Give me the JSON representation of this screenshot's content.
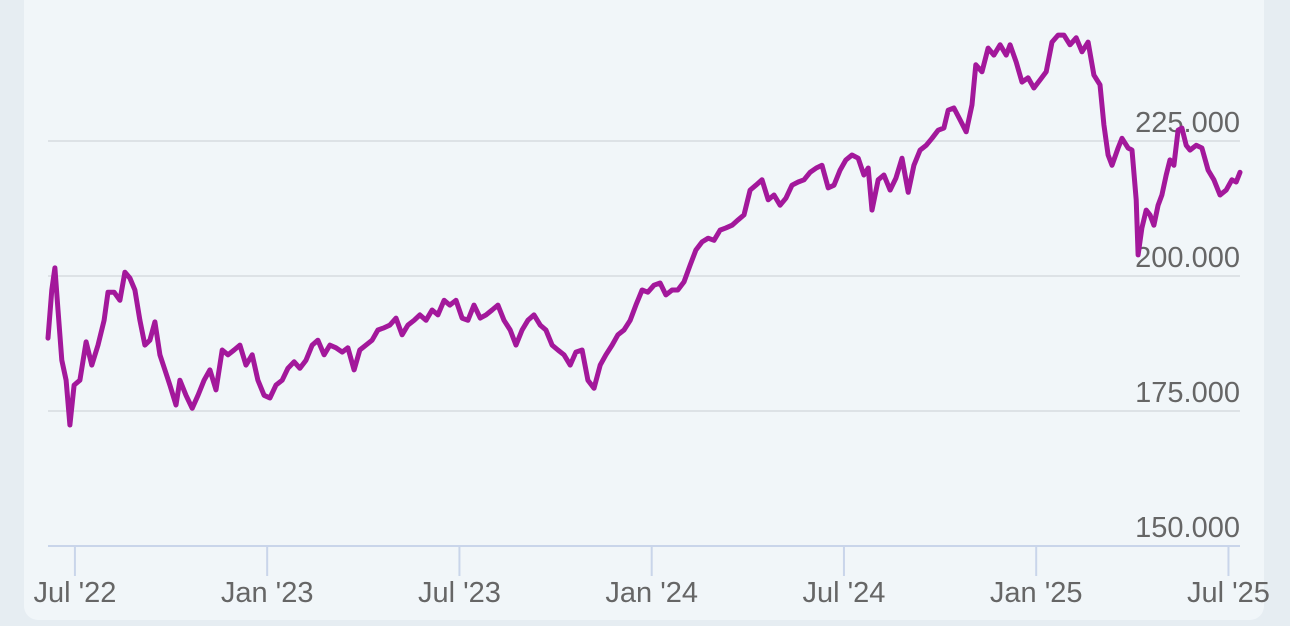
{
  "chart_data": {
    "type": "line",
    "color": "#a3189b",
    "xlim": [
      2022.43,
      2025.53
    ],
    "xticks": [
      {
        "value": 2022.5,
        "label": "Jul '22"
      },
      {
        "value": 2023.0,
        "label": "Jan '23"
      },
      {
        "value": 2023.5,
        "label": "Jul '23"
      },
      {
        "value": 2024.0,
        "label": "Jan '24"
      },
      {
        "value": 2024.5,
        "label": "Jul '24"
      },
      {
        "value": 2025.0,
        "label": "Jan '25"
      },
      {
        "value": 2025.5,
        "label": "Jul '25"
      }
    ],
    "ylim": [
      150000,
      251100
    ],
    "yticks": [
      {
        "value": 150000,
        "label": "150.000"
      },
      {
        "value": 175000,
        "label": "175.000"
      },
      {
        "value": 200000,
        "label": "200.000"
      },
      {
        "value": 225000,
        "label": "225.000"
      }
    ],
    "grid": true,
    "x": [
      2022.43,
      2022.44,
      2022.448,
      2022.456,
      2022.466,
      2022.477,
      2022.487,
      2022.498,
      2022.513,
      2022.529,
      2022.544,
      2022.56,
      2022.576,
      2022.586,
      2022.602,
      2022.617,
      2022.63,
      2022.643,
      2022.656,
      2022.669,
      2022.682,
      2022.695,
      2022.708,
      2022.721,
      2022.734,
      2022.747,
      2022.763,
      2022.773,
      2022.789,
      2022.805,
      2022.82,
      2022.836,
      2022.851,
      2022.867,
      2022.883,
      2022.898,
      2022.914,
      2022.929,
      2022.945,
      2022.961,
      2022.976,
      2022.992,
      2023.007,
      2023.023,
      2023.039,
      2023.054,
      2023.07,
      2023.085,
      2023.101,
      2023.117,
      2023.132,
      2023.148,
      2023.163,
      2023.179,
      2023.195,
      2023.21,
      2023.226,
      2023.241,
      2023.257,
      2023.273,
      2023.288,
      2023.304,
      2023.319,
      2023.335,
      2023.351,
      2023.366,
      2023.382,
      2023.397,
      2023.413,
      2023.429,
      2023.444,
      2023.46,
      2023.475,
      2023.491,
      2023.507,
      2023.522,
      2023.538,
      2023.554,
      2023.569,
      2023.585,
      2023.6,
      2023.616,
      2023.632,
      2023.647,
      2023.663,
      2023.678,
      2023.694,
      2023.71,
      2023.725,
      2023.741,
      2023.756,
      2023.772,
      2023.788,
      2023.803,
      2023.819,
      2023.834,
      2023.85,
      2023.866,
      2023.881,
      2023.897,
      2023.912,
      2023.928,
      2023.944,
      2023.959,
      2023.975,
      2023.99,
      2024.006,
      2024.022,
      2024.037,
      2024.053,
      2024.068,
      2024.084,
      2024.1,
      2024.115,
      2024.131,
      2024.147,
      2024.162,
      2024.178,
      2024.193,
      2024.209,
      2024.225,
      2024.24,
      2024.256,
      2024.271,
      2024.287,
      2024.303,
      2024.318,
      2024.334,
      2024.349,
      2024.365,
      2024.381,
      2024.396,
      2024.412,
      2024.428,
      2024.443,
      2024.459,
      2024.474,
      2024.49,
      2024.505,
      2024.521,
      2024.537,
      2024.552,
      2024.563,
      2024.573,
      2024.589,
      2024.604,
      2024.62,
      2024.635,
      2024.651,
      2024.667,
      2024.682,
      2024.698,
      2024.714,
      2024.729,
      2024.745,
      2024.76,
      2024.771,
      2024.786,
      2024.802,
      2024.818,
      2024.833,
      2024.843,
      2024.859,
      2024.875,
      2024.89,
      2024.906,
      2024.922,
      2024.932,
      2024.948,
      2024.963,
      2024.979,
      2024.994,
      2025.01,
      2025.026,
      2025.041,
      2025.057,
      2025.072,
      2025.088,
      2025.104,
      2025.119,
      2025.135,
      2025.15,
      2025.166,
      2025.176,
      2025.187,
      2025.197,
      2025.213,
      2025.223,
      2025.239,
      2025.249,
      2025.26,
      2025.265,
      2025.275,
      2025.286,
      2025.296,
      2025.306,
      2025.317,
      2025.327,
      2025.338,
      2025.348,
      2025.358,
      2025.369,
      2025.379,
      2025.39,
      2025.4,
      2025.416,
      2025.431,
      2025.447,
      2025.462,
      2025.478,
      2025.494,
      2025.509,
      2025.52,
      2025.53
    ],
    "values": [
      188500,
      197400,
      201500,
      193700,
      184400,
      180700,
      172400,
      179800,
      180700,
      187800,
      183500,
      187200,
      191800,
      197000,
      197000,
      195500,
      200700,
      199600,
      197400,
      191800,
      187200,
      188100,
      191500,
      185400,
      182600,
      179800,
      176100,
      180700,
      177900,
      175500,
      177900,
      180700,
      182600,
      178900,
      186300,
      185400,
      186300,
      187200,
      183500,
      185400,
      180700,
      177900,
      177400,
      179800,
      180700,
      182900,
      184100,
      182900,
      184400,
      187200,
      188100,
      185400,
      187200,
      186700,
      185900,
      186700,
      182600,
      186300,
      187200,
      188100,
      190000,
      190400,
      190900,
      192200,
      189100,
      190900,
      191800,
      192800,
      191800,
      193700,
      192800,
      195500,
      194600,
      195500,
      192200,
      191800,
      194600,
      192200,
      192800,
      193700,
      194600,
      191800,
      190000,
      187200,
      190000,
      191800,
      192800,
      190900,
      190000,
      187200,
      186300,
      185400,
      183500,
      185900,
      186300,
      180700,
      179200,
      183500,
      185400,
      187200,
      189100,
      190000,
      191800,
      194600,
      197400,
      197000,
      198300,
      198700,
      196500,
      197400,
      197400,
      198900,
      202000,
      204800,
      206300,
      207000,
      206600,
      208500,
      208900,
      209400,
      210400,
      211300,
      215900,
      216800,
      217800,
      214100,
      215000,
      213100,
      214400,
      216800,
      217400,
      217800,
      219200,
      220000,
      220500,
      216300,
      216800,
      219600,
      221500,
      222400,
      221800,
      218700,
      220000,
      212200,
      217800,
      218700,
      215900,
      218100,
      221800,
      215500,
      220500,
      223300,
      224200,
      225500,
      227000,
      227400,
      230700,
      231100,
      228900,
      226700,
      231700,
      239100,
      237800,
      242200,
      240900,
      242800,
      240900,
      242800,
      239600,
      235900,
      236700,
      234800,
      236300,
      237800,
      243300,
      244600,
      244600,
      242800,
      244100,
      241500,
      243300,
      237200,
      235400,
      228000,
      222400,
      220500,
      223700,
      225500,
      223700,
      223300,
      214100,
      203900,
      208900,
      212200,
      211300,
      209400,
      213100,
      215000,
      218700,
      221500,
      220500,
      227000,
      227400,
      224200,
      223300,
      224200,
      223700,
      219600,
      217800,
      215000,
      215900,
      217800,
      217400,
      219200
    ]
  }
}
